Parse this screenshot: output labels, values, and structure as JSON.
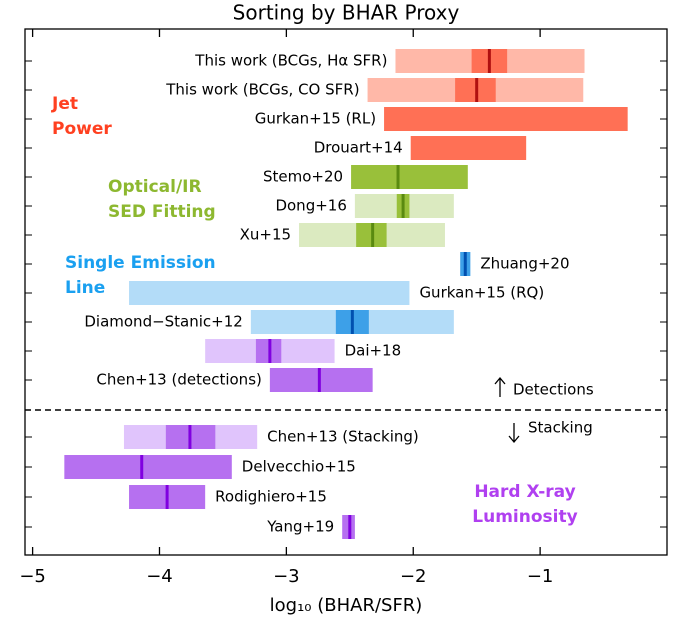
{
  "chart_data": {
    "type": "range",
    "title": "Sorting by BHAR Proxy",
    "xlabel": "log₁₀ (BHAR/SFR)",
    "xlim": [
      -5.06,
      0
    ],
    "xticks": [
      {
        "value": -5,
        "label": "−5"
      },
      {
        "value": -4,
        "label": "−4"
      },
      {
        "value": -3,
        "label": "−3"
      },
      {
        "value": -2,
        "label": "−2"
      },
      {
        "value": -1,
        "label": "−1"
      }
    ],
    "groups": [
      {
        "label": [
          "Jet",
          "Power"
        ],
        "color": "#ff4020",
        "light": "#ffb8a8",
        "dark": "#ff7055",
        "median": "#b01010"
      },
      {
        "label": [
          "Optical/IR",
          "SED Fitting"
        ],
        "color": "#8db830",
        "light": "#dbeac0",
        "dark": "#99c03a",
        "median": "#5a8a10"
      },
      {
        "label": [
          "Single Emission",
          "Line"
        ],
        "color": "#1aa0f0",
        "light": "#b3dcf8",
        "dark": "#3da0e8",
        "median": "#0050b0"
      },
      {
        "label": [
          "Hard X-ray",
          "Luminosity"
        ],
        "color": "#b040f0",
        "light": "#e0c4fc",
        "dark": "#b670f0",
        "median": "#8000e0"
      }
    ],
    "rows": [
      {
        "label": "This work (BCGs, Hα SFR)",
        "group": 0,
        "outer": [
          -2.14,
          -0.65
        ],
        "inner": [
          -1.54,
          -1.26
        ],
        "median": -1.4,
        "label_side": "left"
      },
      {
        "label": "This work (BCGs, CO SFR)",
        "group": 0,
        "outer": [
          -2.36,
          -0.66
        ],
        "inner": [
          -1.67,
          -1.35
        ],
        "median": -1.5,
        "label_side": "left"
      },
      {
        "label": "Gurkan+15 (RL)",
        "group": 0,
        "inner": [
          -2.23,
          -0.31
        ],
        "label_side": "left"
      },
      {
        "label": "Drouart+14",
        "group": 0,
        "inner": [
          -2.02,
          -1.11
        ],
        "label_side": "left"
      },
      {
        "label": "Stemo+20",
        "group": 1,
        "inner": [
          -2.49,
          -1.57
        ],
        "median": -2.12,
        "label_side": "left"
      },
      {
        "label": "Dong+16",
        "group": 1,
        "outer": [
          -2.46,
          -1.68
        ],
        "inner": [
          -2.13,
          -2.03
        ],
        "median": -2.08,
        "label_side": "left"
      },
      {
        "label": "Xu+15",
        "group": 1,
        "outer": [
          -2.9,
          -1.75
        ],
        "inner": [
          -2.45,
          -2.21
        ],
        "median": -2.32,
        "label_side": "left"
      },
      {
        "label": "Zhuang+20",
        "group": 2,
        "inner": [
          -1.63,
          -1.55
        ],
        "median": -1.59,
        "label_side": "right"
      },
      {
        "label": "Gurkan+15 (RQ)",
        "group": 2,
        "outer": [
          -4.24,
          -2.03
        ],
        "label_side": "right"
      },
      {
        "label": "Diamond−Stanic+12",
        "group": 2,
        "outer": [
          -3.28,
          -1.68
        ],
        "inner": [
          -2.61,
          -2.35
        ],
        "median": -2.48,
        "label_side": "left"
      },
      {
        "label": "Dai+18",
        "group": 3,
        "outer": [
          -3.64,
          -2.62
        ],
        "inner": [
          -3.24,
          -3.04
        ],
        "median": -3.13,
        "label_side": "right"
      },
      {
        "label": "Chen+13 (detections)",
        "group": 3,
        "inner": [
          -3.13,
          -2.32
        ],
        "median": -2.74,
        "label_side": "left"
      },
      {
        "label": "Chen+13 (Stacking)",
        "group": 3,
        "outer": [
          -4.28,
          -3.23
        ],
        "inner": [
          -3.95,
          -3.56
        ],
        "median": -3.76,
        "label_side": "right"
      },
      {
        "label": "Delvecchio+15",
        "group": 3,
        "inner": [
          -4.75,
          -3.43
        ],
        "median": -4.14,
        "label_side": "right"
      },
      {
        "label": "Rodighiero+15",
        "group": 3,
        "inner": [
          -4.24,
          -3.64
        ],
        "median": -3.94,
        "label_side": "right"
      },
      {
        "label": "Yang+19",
        "group": 3,
        "inner": [
          -2.56,
          -2.46
        ],
        "median": -2.5,
        "label_side": "left"
      }
    ],
    "annotations": [
      "Detections",
      "Stacking"
    ]
  }
}
